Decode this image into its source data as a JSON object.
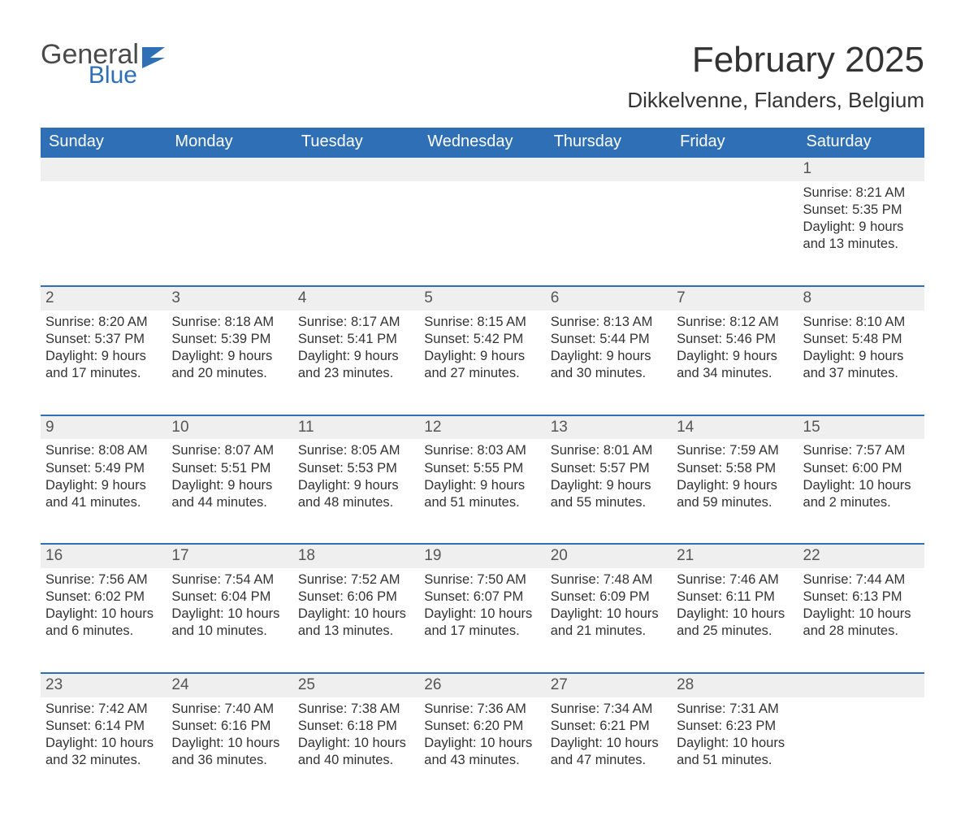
{
  "brand": {
    "word1": "General",
    "word2": "Blue",
    "flag_color": "#2f6fb5"
  },
  "header": {
    "title": "February 2025",
    "location": "Dikkelvenne, Flanders, Belgium"
  },
  "colors": {
    "header_bg": "#2f6fb5",
    "header_text": "#ffffff",
    "daynum_bg": "#efefef",
    "body_text": "#333333",
    "rule": "#2f6fb5",
    "page_bg": "#ffffff"
  },
  "typography": {
    "title_fontsize_pt": 33,
    "location_fontsize_pt": 20,
    "weekday_fontsize_pt": 15,
    "body_fontsize_pt": 12
  },
  "calendar": {
    "type": "table",
    "weekdays": [
      "Sunday",
      "Monday",
      "Tuesday",
      "Wednesday",
      "Thursday",
      "Friday",
      "Saturday"
    ],
    "weeks": [
      [
        null,
        null,
        null,
        null,
        null,
        null,
        {
          "n": "1",
          "sunrise": "Sunrise: 8:21 AM",
          "sunset": "Sunset: 5:35 PM",
          "daylight": "Daylight: 9 hours and 13 minutes."
        }
      ],
      [
        {
          "n": "2",
          "sunrise": "Sunrise: 8:20 AM",
          "sunset": "Sunset: 5:37 PM",
          "daylight": "Daylight: 9 hours and 17 minutes."
        },
        {
          "n": "3",
          "sunrise": "Sunrise: 8:18 AM",
          "sunset": "Sunset: 5:39 PM",
          "daylight": "Daylight: 9 hours and 20 minutes."
        },
        {
          "n": "4",
          "sunrise": "Sunrise: 8:17 AM",
          "sunset": "Sunset: 5:41 PM",
          "daylight": "Daylight: 9 hours and 23 minutes."
        },
        {
          "n": "5",
          "sunrise": "Sunrise: 8:15 AM",
          "sunset": "Sunset: 5:42 PM",
          "daylight": "Daylight: 9 hours and 27 minutes."
        },
        {
          "n": "6",
          "sunrise": "Sunrise: 8:13 AM",
          "sunset": "Sunset: 5:44 PM",
          "daylight": "Daylight: 9 hours and 30 minutes."
        },
        {
          "n": "7",
          "sunrise": "Sunrise: 8:12 AM",
          "sunset": "Sunset: 5:46 PM",
          "daylight": "Daylight: 9 hours and 34 minutes."
        },
        {
          "n": "8",
          "sunrise": "Sunrise: 8:10 AM",
          "sunset": "Sunset: 5:48 PM",
          "daylight": "Daylight: 9 hours and 37 minutes."
        }
      ],
      [
        {
          "n": "9",
          "sunrise": "Sunrise: 8:08 AM",
          "sunset": "Sunset: 5:49 PM",
          "daylight": "Daylight: 9 hours and 41 minutes."
        },
        {
          "n": "10",
          "sunrise": "Sunrise: 8:07 AM",
          "sunset": "Sunset: 5:51 PM",
          "daylight": "Daylight: 9 hours and 44 minutes."
        },
        {
          "n": "11",
          "sunrise": "Sunrise: 8:05 AM",
          "sunset": "Sunset: 5:53 PM",
          "daylight": "Daylight: 9 hours and 48 minutes."
        },
        {
          "n": "12",
          "sunrise": "Sunrise: 8:03 AM",
          "sunset": "Sunset: 5:55 PM",
          "daylight": "Daylight: 9 hours and 51 minutes."
        },
        {
          "n": "13",
          "sunrise": "Sunrise: 8:01 AM",
          "sunset": "Sunset: 5:57 PM",
          "daylight": "Daylight: 9 hours and 55 minutes."
        },
        {
          "n": "14",
          "sunrise": "Sunrise: 7:59 AM",
          "sunset": "Sunset: 5:58 PM",
          "daylight": "Daylight: 9 hours and 59 minutes."
        },
        {
          "n": "15",
          "sunrise": "Sunrise: 7:57 AM",
          "sunset": "Sunset: 6:00 PM",
          "daylight": "Daylight: 10 hours and 2 minutes."
        }
      ],
      [
        {
          "n": "16",
          "sunrise": "Sunrise: 7:56 AM",
          "sunset": "Sunset: 6:02 PM",
          "daylight": "Daylight: 10 hours and 6 minutes."
        },
        {
          "n": "17",
          "sunrise": "Sunrise: 7:54 AM",
          "sunset": "Sunset: 6:04 PM",
          "daylight": "Daylight: 10 hours and 10 minutes."
        },
        {
          "n": "18",
          "sunrise": "Sunrise: 7:52 AM",
          "sunset": "Sunset: 6:06 PM",
          "daylight": "Daylight: 10 hours and 13 minutes."
        },
        {
          "n": "19",
          "sunrise": "Sunrise: 7:50 AM",
          "sunset": "Sunset: 6:07 PM",
          "daylight": "Daylight: 10 hours and 17 minutes."
        },
        {
          "n": "20",
          "sunrise": "Sunrise: 7:48 AM",
          "sunset": "Sunset: 6:09 PM",
          "daylight": "Daylight: 10 hours and 21 minutes."
        },
        {
          "n": "21",
          "sunrise": "Sunrise: 7:46 AM",
          "sunset": "Sunset: 6:11 PM",
          "daylight": "Daylight: 10 hours and 25 minutes."
        },
        {
          "n": "22",
          "sunrise": "Sunrise: 7:44 AM",
          "sunset": "Sunset: 6:13 PM",
          "daylight": "Daylight: 10 hours and 28 minutes."
        }
      ],
      [
        {
          "n": "23",
          "sunrise": "Sunrise: 7:42 AM",
          "sunset": "Sunset: 6:14 PM",
          "daylight": "Daylight: 10 hours and 32 minutes."
        },
        {
          "n": "24",
          "sunrise": "Sunrise: 7:40 AM",
          "sunset": "Sunset: 6:16 PM",
          "daylight": "Daylight: 10 hours and 36 minutes."
        },
        {
          "n": "25",
          "sunrise": "Sunrise: 7:38 AM",
          "sunset": "Sunset: 6:18 PM",
          "daylight": "Daylight: 10 hours and 40 minutes."
        },
        {
          "n": "26",
          "sunrise": "Sunrise: 7:36 AM",
          "sunset": "Sunset: 6:20 PM",
          "daylight": "Daylight: 10 hours and 43 minutes."
        },
        {
          "n": "27",
          "sunrise": "Sunrise: 7:34 AM",
          "sunset": "Sunset: 6:21 PM",
          "daylight": "Daylight: 10 hours and 47 minutes."
        },
        {
          "n": "28",
          "sunrise": "Sunrise: 7:31 AM",
          "sunset": "Sunset: 6:23 PM",
          "daylight": "Daylight: 10 hours and 51 minutes."
        },
        null
      ]
    ]
  }
}
